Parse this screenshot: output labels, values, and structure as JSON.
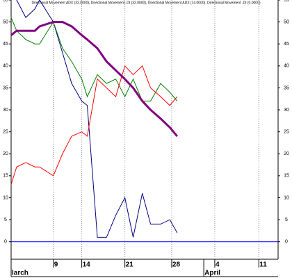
{
  "chart_data": {
    "type": "line",
    "title": "Directional Movement ADX (32.0000), Directional Movement -DI (32.0000), Directional Movement ADX (14.0000), Directional Movement -DI (0.0000)",
    "x": [
      0,
      0.6,
      1.6,
      2.6,
      3.1,
      4.6,
      5.6,
      6.6,
      7.7,
      8.3,
      9.4,
      10.4,
      11.4,
      12.4,
      13.3,
      14.3,
      15.2,
      16.3,
      17.3,
      18.1
    ],
    "series": [
      {
        "color": "#000080",
        "width": 1,
        "values": [
          58,
          55,
          51,
          53,
          55,
          50,
          43,
          36,
          32,
          31,
          1,
          1,
          6,
          10,
          1,
          11,
          4,
          4,
          5,
          2
        ]
      },
      {
        "color": "#008000",
        "width": 1,
        "values": [
          51,
          48,
          46,
          45,
          45,
          50,
          44,
          41,
          37,
          33,
          38,
          36,
          37,
          33,
          37,
          32,
          32,
          36,
          34,
          32
        ]
      },
      {
        "color": "#ff0000",
        "width": 1,
        "values": [
          13,
          17,
          18,
          17,
          17,
          15,
          20,
          24,
          25,
          24,
          37,
          35,
          33,
          40,
          38,
          40,
          35,
          33,
          31,
          33
        ]
      },
      {
        "color": "#800080",
        "width": 3,
        "values": [
          47,
          48,
          48,
          48,
          49,
          50,
          50,
          49,
          47,
          46,
          44,
          41,
          39,
          37,
          35,
          32,
          30,
          28,
          26,
          24
        ]
      }
    ],
    "xlim": [
      0,
      29.1
    ],
    "xticks": [
      {
        "value": 4.6,
        "label": "9"
      },
      {
        "value": 7.7,
        "label": "14"
      },
      {
        "value": 12.4,
        "label": "21"
      },
      {
        "value": 17.5,
        "label": "28"
      },
      {
        "value": 22.2,
        "label": "4"
      },
      {
        "value": 27,
        "label": "11"
      }
    ],
    "month_labels": [
      {
        "value": 0,
        "label": "larch"
      },
      {
        "value": 21,
        "label": "April"
      }
    ],
    "ylim": [
      -4,
      55
    ],
    "yticks": [
      0,
      5,
      10,
      15,
      20,
      25,
      30,
      35,
      40,
      45,
      50,
      55
    ],
    "zero_line_color": "#0000ff",
    "grid": true
  }
}
